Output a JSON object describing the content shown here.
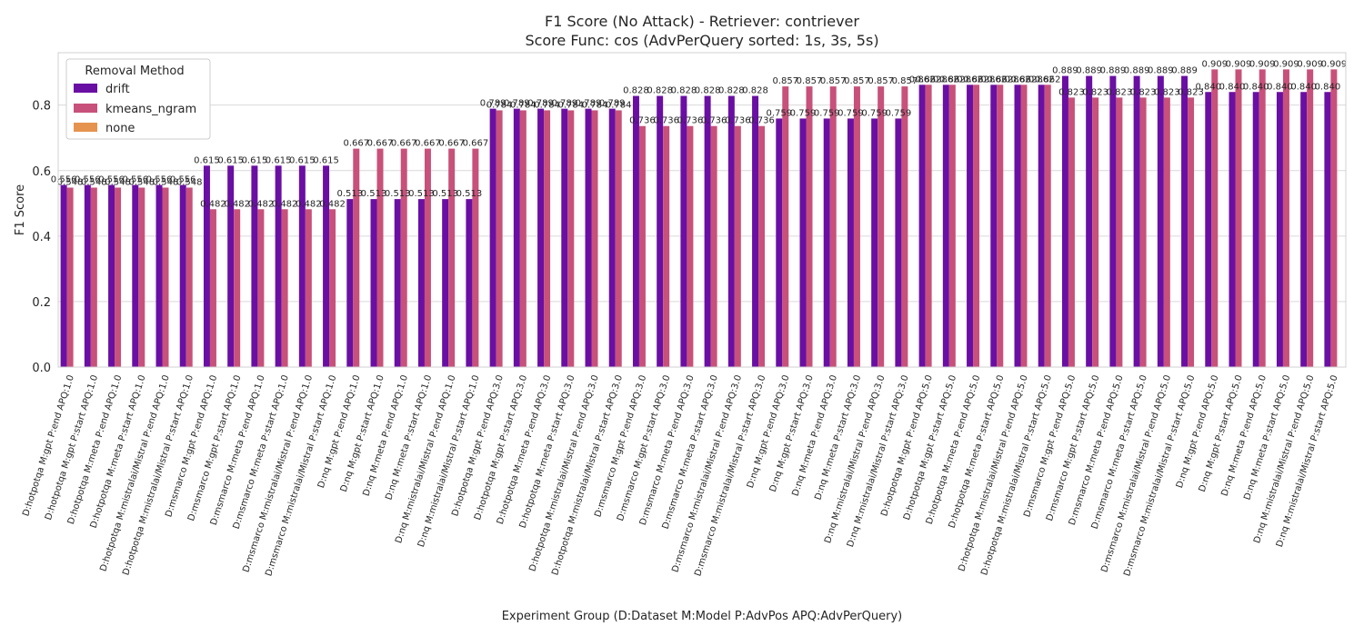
{
  "chart_data": {
    "type": "bar",
    "title": "F1 Score (No Attack) - Retriever: contriever",
    "subtitle": "Score Func: cos (AdvPerQuery sorted: 1s, 3s, 5s)",
    "xlabel": "Experiment Group (D:Dataset M:Model P:AdvPos APQ:AdvPerQuery)",
    "ylabel": "F1 Score",
    "ylim": [
      0,
      0.96
    ],
    "yticks": [
      0.0,
      0.2,
      0.4,
      0.6,
      0.8
    ],
    "ytick_labels": [
      "0.0",
      "0.2",
      "0.4",
      "0.6",
      "0.8"
    ],
    "grid": true,
    "legend": {
      "title": "Removal Method",
      "placement": "top-left",
      "entries": [
        "drift",
        "kmeans_ngram",
        "none"
      ]
    },
    "colors": {
      "drift": "#6a0fa3",
      "kmeans_ngram": "#c7517a",
      "none": "#e5934e"
    },
    "categories": [
      "D:hotpotqa M:gpt P:end APQ:1.0",
      "D:hotpotqa M:gpt P:start APQ:1.0",
      "D:hotpotqa M:meta P:end APQ:1.0",
      "D:hotpotqa M:meta P:start APQ:1.0",
      "D:hotpotqa M:mistralai/Mistral P:end APQ:1.0",
      "D:hotpotqa M:mistralai/Mistral P:start APQ:1.0",
      "D:msmarco M:gpt P:end APQ:1.0",
      "D:msmarco M:gpt P:start APQ:1.0",
      "D:msmarco M:meta P:end APQ:1.0",
      "D:msmarco M:meta P:start APQ:1.0",
      "D:msmarco M:mistralai/Mistral P:end APQ:1.0",
      "D:msmarco M:mistralai/Mistral P:start APQ:1.0",
      "D:nq M:gpt P:end APQ:1.0",
      "D:nq M:gpt P:start APQ:1.0",
      "D:nq M:meta P:end APQ:1.0",
      "D:nq M:meta P:start APQ:1.0",
      "D:nq M:mistralai/Mistral P:end APQ:1.0",
      "D:nq M:mistralai/Mistral P:start APQ:1.0",
      "D:hotpotqa M:gpt P:end APQ:3.0",
      "D:hotpotqa M:gpt P:start APQ:3.0",
      "D:hotpotqa M:meta P:end APQ:3.0",
      "D:hotpotqa M:meta P:start APQ:3.0",
      "D:hotpotqa M:mistralai/Mistral P:end APQ:3.0",
      "D:hotpotqa M:mistralai/Mistral P:start APQ:3.0",
      "D:msmarco M:gpt P:end APQ:3.0",
      "D:msmarco M:gpt P:start APQ:3.0",
      "D:msmarco M:meta P:end APQ:3.0",
      "D:msmarco M:meta P:start APQ:3.0",
      "D:msmarco M:mistralai/Mistral P:end APQ:3.0",
      "D:msmarco M:mistralai/Mistral P:start APQ:3.0",
      "D:nq M:gpt P:end APQ:3.0",
      "D:nq M:gpt P:start APQ:3.0",
      "D:nq M:meta P:end APQ:3.0",
      "D:nq M:meta P:start APQ:3.0",
      "D:nq M:mistralai/Mistral P:end APQ:3.0",
      "D:nq M:mistralai/Mistral P:start APQ:3.0",
      "D:hotpotqa M:gpt P:end APQ:5.0",
      "D:hotpotqa M:gpt P:start APQ:5.0",
      "D:hotpotqa M:meta P:end APQ:5.0",
      "D:hotpotqa M:meta P:start APQ:5.0",
      "D:hotpotqa M:mistralai/Mistral P:end APQ:5.0",
      "D:hotpotqa M:mistralai/Mistral P:start APQ:5.0",
      "D:msmarco M:gpt P:end APQ:5.0",
      "D:msmarco M:gpt P:start APQ:5.0",
      "D:msmarco M:meta P:end APQ:5.0",
      "D:msmarco M:meta P:start APQ:5.0",
      "D:msmarco M:mistralai/Mistral P:end APQ:5.0",
      "D:msmarco M:mistralai/Mistral P:start APQ:5.0",
      "D:nq M:gpt P:end APQ:5.0",
      "D:nq M:gpt P:start APQ:5.0",
      "D:nq M:meta P:end APQ:5.0",
      "D:nq M:meta P:start APQ:5.0",
      "D:nq M:mistralai/Mistral P:end APQ:5.0",
      "D:nq M:mistralai/Mistral P:start APQ:5.0"
    ],
    "series": [
      {
        "name": "drift",
        "values": [
          0.556,
          0.556,
          0.556,
          0.556,
          0.556,
          0.556,
          0.615,
          0.615,
          0.615,
          0.615,
          0.615,
          0.615,
          0.513,
          0.513,
          0.513,
          0.513,
          0.513,
          0.513,
          0.789,
          0.789,
          0.789,
          0.789,
          0.789,
          0.789,
          0.828,
          0.828,
          0.828,
          0.828,
          0.828,
          0.828,
          0.759,
          0.759,
          0.759,
          0.759,
          0.759,
          0.759,
          0.862,
          0.862,
          0.862,
          0.862,
          0.862,
          0.862,
          0.889,
          0.889,
          0.889,
          0.889,
          0.889,
          0.889,
          0.84,
          0.84,
          0.84,
          0.84,
          0.84,
          0.84
        ],
        "labels": [
          "0.556",
          "0.556",
          "0.556",
          "0.556",
          "0.556",
          "0.556",
          "0.615",
          "0.615",
          "0.615",
          "0.615",
          "0.615",
          "0.615",
          "0.513",
          "0.513",
          "0.513",
          "0.513",
          "0.513",
          "0.513",
          "0.789",
          "0.789",
          "0.789",
          "0.789",
          "0.789",
          "0.789",
          "0.828",
          "0.828",
          "0.828",
          "0.828",
          "0.828",
          "0.828",
          "0.759",
          "0.759",
          "0.759",
          "0.759",
          "0.759",
          "0.759",
          "0.862",
          "0.862",
          "0.862",
          "0.862",
          "0.862",
          "0.862",
          "0.889",
          "0.889",
          "0.889",
          "0.889",
          "0.889",
          "0.889",
          "0.840",
          "0.840",
          "0.840",
          "0.840",
          "0.840",
          "0.840"
        ]
      },
      {
        "name": "kmeans_ngram",
        "values": [
          0.548,
          0.548,
          0.548,
          0.548,
          0.548,
          0.548,
          0.482,
          0.482,
          0.482,
          0.482,
          0.482,
          0.482,
          0.667,
          0.667,
          0.667,
          0.667,
          0.667,
          0.667,
          0.784,
          0.784,
          0.784,
          0.784,
          0.784,
          0.784,
          0.736,
          0.736,
          0.736,
          0.736,
          0.736,
          0.736,
          0.857,
          0.857,
          0.857,
          0.857,
          0.857,
          0.857,
          0.862,
          0.862,
          0.862,
          0.862,
          0.862,
          0.862,
          0.823,
          0.823,
          0.823,
          0.823,
          0.823,
          0.823,
          0.909,
          0.909,
          0.909,
          0.909,
          0.909,
          0.909
        ],
        "labels": [
          "0.548",
          "0.548",
          "0.548",
          "0.548",
          "0.548",
          "0.548",
          "0.482",
          "0.482",
          "0.482",
          "0.482",
          "0.482",
          "0.482",
          "0.667",
          "0.667",
          "0.667",
          "0.667",
          "0.667",
          "0.667",
          "0.784",
          "0.784",
          "0.784",
          "0.784",
          "0.784",
          "0.784",
          "0.736",
          "0.736",
          "0.736",
          "0.736",
          "0.736",
          "0.736",
          "0.857",
          "0.857",
          "0.857",
          "0.857",
          "0.857",
          "0.857",
          "0.862",
          "0.862",
          "0.862",
          "0.862",
          "0.862",
          "0.862",
          "0.823",
          "0.823",
          "0.823",
          "0.823",
          "0.823",
          "0.823",
          "0.909",
          "0.909",
          "0.909",
          "0.909",
          "0.909",
          "0.909"
        ]
      },
      {
        "name": "none",
        "values": [
          0,
          0,
          0,
          0,
          0,
          0,
          0,
          0,
          0,
          0,
          0,
          0,
          0,
          0,
          0,
          0,
          0,
          0,
          0,
          0,
          0,
          0,
          0,
          0,
          0,
          0,
          0,
          0,
          0,
          0,
          0,
          0,
          0,
          0,
          0,
          0,
          0,
          0,
          0,
          0,
          0,
          0,
          0,
          0,
          0,
          0,
          0,
          0,
          0,
          0,
          0,
          0,
          0,
          0
        ]
      }
    ]
  }
}
